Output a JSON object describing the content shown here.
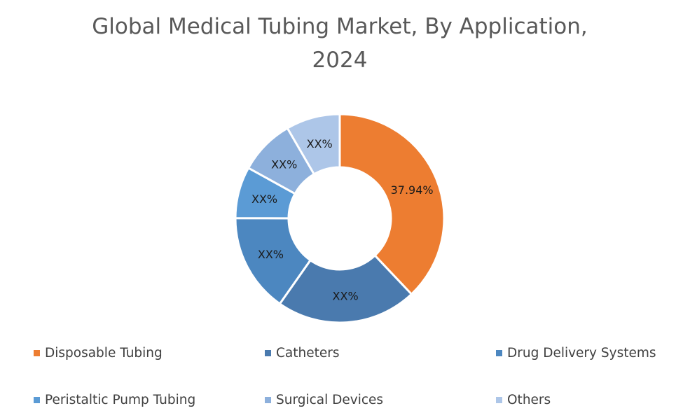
{
  "chart_data": {
    "type": "pie",
    "donut": true,
    "title": "Global Medical Tubing Market, By Application, 2024",
    "title_lines": [
      "Global Medical Tubing Market, By Application,",
      "2024"
    ],
    "categories": [
      "Disposable Tubing",
      "Catheters",
      "Drug Delivery Systems",
      "Peristaltic Pump Tubing",
      "Surgical Devices",
      "Others"
    ],
    "values": [
      37.94,
      21.8,
      15.3,
      8.0,
      8.6,
      8.36
    ],
    "data_labels": [
      "37.94%",
      "XX%",
      "XX%",
      "XX%",
      "XX%",
      "XX%"
    ],
    "colors": [
      "#ED7D31",
      "#4A7AAE",
      "#4C87C0",
      "#5B9BD5",
      "#8DB0DC",
      "#ADC6E8"
    ],
    "legend_position": "bottom"
  }
}
